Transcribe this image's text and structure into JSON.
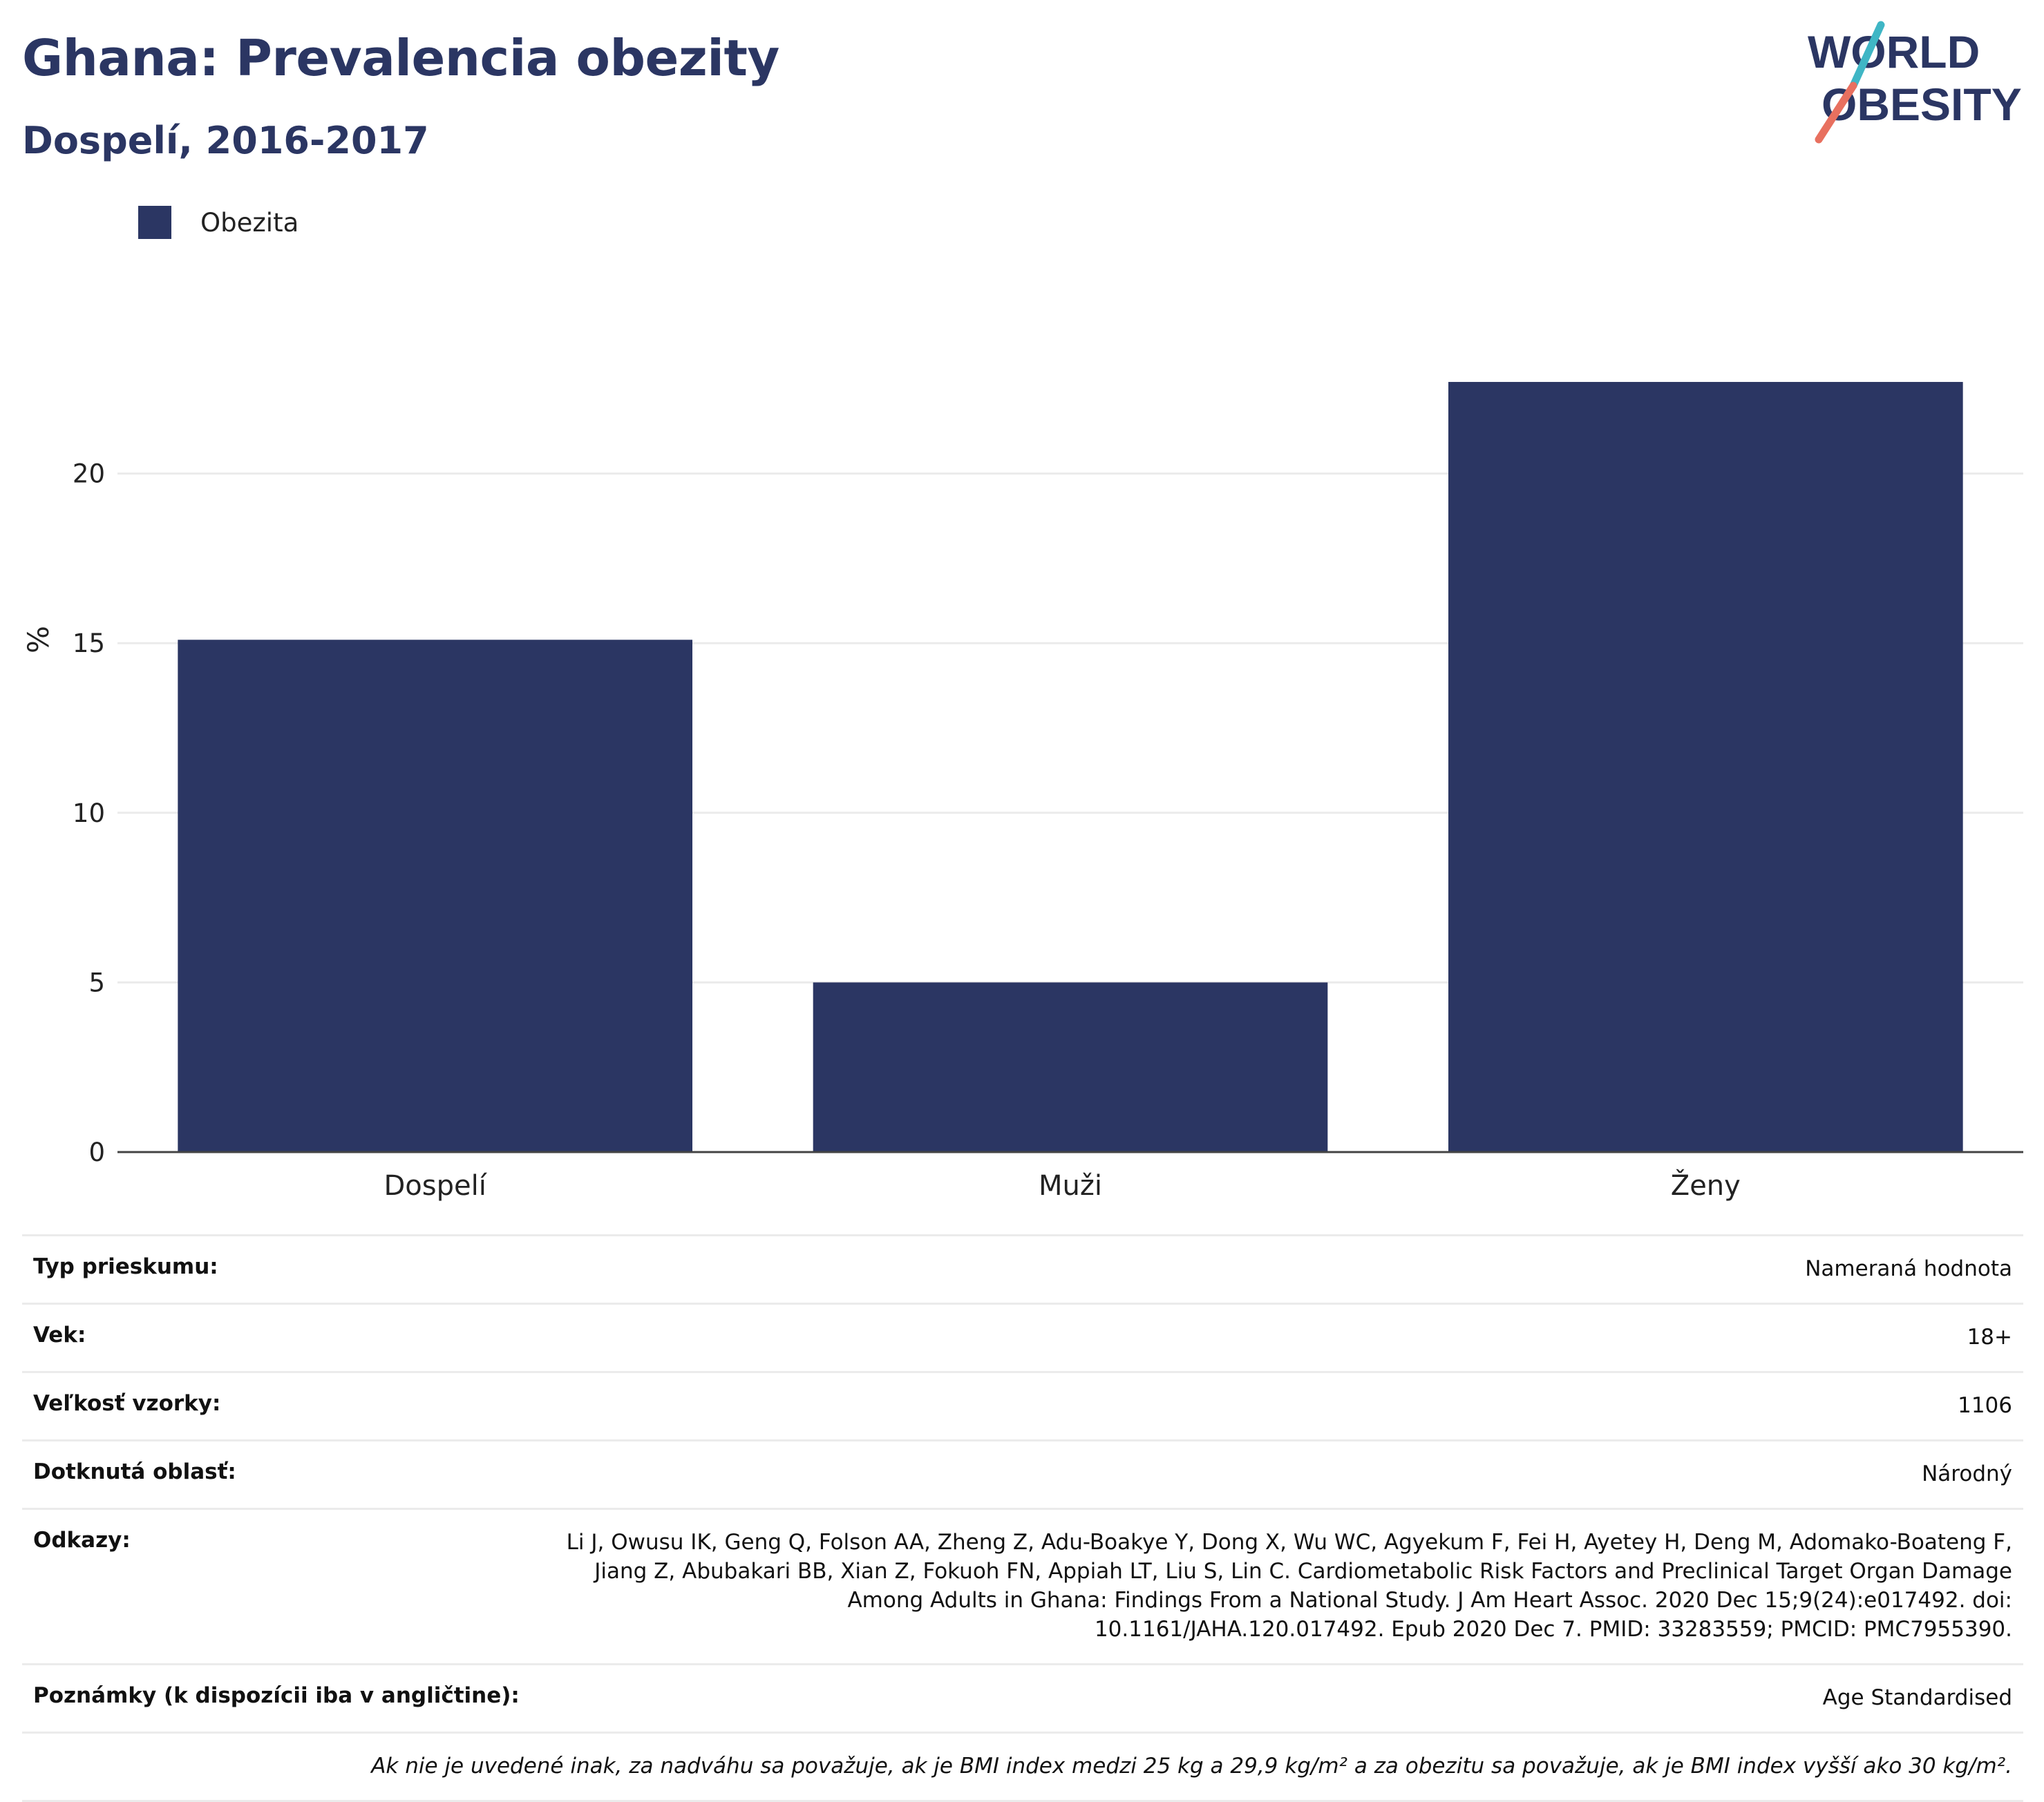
{
  "header": {
    "title": "Ghana: Prevalencia obezity",
    "subtitle": "Dospelí, 2016-2017"
  },
  "logo": {
    "line1": "WORLD",
    "line2": "OBESITY"
  },
  "colors": {
    "bar": "#2b3663",
    "title": "#2b3663",
    "logo_teal": "#3fb6c5",
    "logo_coral": "#e8705f",
    "grid": "#ebebeb",
    "axis": "#444444"
  },
  "legend": {
    "items": [
      {
        "label": "Obezita",
        "color": "#2b3663"
      }
    ]
  },
  "chart_data": {
    "type": "bar",
    "categories": [
      "Dospelí",
      "Muži",
      "Ženy"
    ],
    "series": [
      {
        "name": "Obezita",
        "values": [
          15.1,
          5.0,
          22.7
        ]
      }
    ],
    "ylabel": "%",
    "xlabel": "",
    "ylim": [
      0,
      25
    ],
    "yticks": [
      0,
      5,
      10,
      15,
      20
    ],
    "grid": true,
    "legend_position": "top-left"
  },
  "info": {
    "rows": [
      {
        "label": "Typ prieskumu:",
        "value": "Nameraná hodnota"
      },
      {
        "label": "Vek:",
        "value": "18+"
      },
      {
        "label": "Veľkosť vzorky:",
        "value": "1106"
      },
      {
        "label": "Dotknutá oblasť:",
        "value": "Národný"
      },
      {
        "label": "Odkazy:",
        "value": "Li J, Owusu IK, Geng Q, Folson AA, Zheng Z, Adu-Boakye Y, Dong X, Wu WC, Agyekum F, Fei H, Ayetey H, Deng M, Adomako-Boateng F, Jiang Z, Abubakari BB, Xian Z, Fokuoh FN, Appiah LT, Liu S, Lin C. Cardiometabolic Risk Factors and Preclinical Target Organ Damage Among Adults in Ghana: Findings From a National Study. J Am Heart Assoc. 2020 Dec 15;9(24):e017492. doi: 10.1161/JAHA.120.017492. Epub 2020 Dec 7. PMID: 33283559; PMCID: PMC7955390."
      },
      {
        "label": "Poznámky (k dispozícii iba v angličtine):",
        "value": "Age Standardised"
      }
    ],
    "note": "Ak nie je uvedené inak, za nadváhu sa považuje, ak je BMI index medzi 25 kg a 29,9 kg/m² a za obezitu sa považuje, ak je BMI index vyšší ako 30 kg/m²."
  }
}
